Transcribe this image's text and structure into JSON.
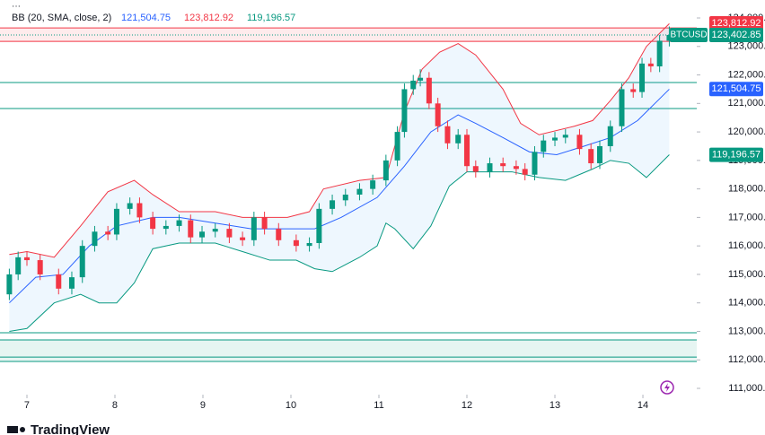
{
  "chart_data": {
    "type": "candlestick",
    "indicator": "BB (20, SMA, close, 2)",
    "symbol": "BTCUSD",
    "brand": "TradingView",
    "up_color": "#089981",
    "down_color": "#f23645",
    "xlim": [
      6.694,
      14.612
    ],
    "xticks": [
      7,
      8,
      9,
      10,
      11,
      12,
      13,
      14
    ],
    "ylim": [
      110780,
      124630
    ],
    "yticks": [
      {
        "value": 111000,
        "label": "111,000.00"
      },
      {
        "value": 112000,
        "label": "112,000.00"
      },
      {
        "value": 113000,
        "label": "113,000.00"
      },
      {
        "value": 114000,
        "label": "114,000.00"
      },
      {
        "value": 115000,
        "label": "115,000.00"
      },
      {
        "value": 116000,
        "label": "116,000.00"
      },
      {
        "value": 117000,
        "label": "117,000.00"
      },
      {
        "value": 118000,
        "label": "118,000.00"
      },
      {
        "value": 119000,
        "label": "119,000.00"
      },
      {
        "value": 120000,
        "label": "120,000.00"
      },
      {
        "value": 121000,
        "label": "121,000.00"
      },
      {
        "value": 122000,
        "label": "122,000.00"
      },
      {
        "value": 123000,
        "label": "123,000.00"
      },
      {
        "value": 124000,
        "label": "124,000.00"
      }
    ],
    "x": [
      6.8,
      6.9,
      7.0,
      7.15,
      7.36,
      7.51,
      7.63,
      7.77,
      7.92,
      8.02,
      8.17,
      8.28,
      8.43,
      8.58,
      8.73,
      8.86,
      8.99,
      9.14,
      9.3,
      9.45,
      9.58,
      9.7,
      9.86,
      10.06,
      10.21,
      10.32,
      10.47,
      10.62,
      10.78,
      10.93,
      11.08,
      11.21,
      11.29,
      11.39,
      11.47,
      11.57,
      11.67,
      11.78,
      11.9,
      12.0,
      12.1,
      12.26,
      12.41,
      12.56,
      12.66,
      12.77,
      12.87,
      13.0,
      13.12,
      13.28,
      13.41,
      13.51,
      13.63,
      13.76,
      13.89,
      13.99,
      14.09,
      14.19,
      14.3
    ],
    "open": [
      114300,
      115000,
      115600,
      115500,
      115000,
      114500,
      114900,
      116000,
      116500,
      116400,
      117300,
      117500,
      117000,
      116600,
      116700,
      116900,
      116300,
      116500,
      116600,
      116300,
      116200,
      117000,
      116600,
      116200,
      116000,
      116100,
      117300,
      117600,
      117800,
      118000,
      118300,
      119000,
      120000,
      121500,
      121800,
      121900,
      121000,
      120200,
      119600,
      119900,
      118800,
      118600,
      118900,
      118800,
      118700,
      118500,
      119300,
      119700,
      119800,
      119900,
      119400,
      118900,
      119500,
      120200,
      121500,
      121400,
      122400,
      122300,
      123200
    ],
    "high": [
      115200,
      115800,
      115800,
      115700,
      115200,
      115100,
      116200,
      116700,
      116700,
      117500,
      117700,
      117700,
      117200,
      116900,
      117100,
      117100,
      116700,
      116800,
      116800,
      116500,
      117200,
      117200,
      116800,
      116400,
      116300,
      117500,
      117800,
      118000,
      118200,
      118500,
      119200,
      120200,
      121700,
      122000,
      122200,
      122100,
      121200,
      120400,
      120100,
      120100,
      119000,
      119100,
      119100,
      119000,
      118900,
      119500,
      119900,
      120000,
      120100,
      120100,
      119600,
      119700,
      120400,
      121700,
      121700,
      122600,
      122600,
      123400,
      123700
    ],
    "low": [
      114100,
      114800,
      115300,
      114800,
      114300,
      114300,
      114700,
      115800,
      116200,
      116200,
      117100,
      116800,
      116400,
      116400,
      116500,
      116100,
      116100,
      116300,
      116100,
      116000,
      116000,
      116400,
      116000,
      115800,
      115800,
      115900,
      117100,
      117400,
      117600,
      117800,
      118100,
      118800,
      119800,
      121300,
      121600,
      120800,
      120000,
      119400,
      119400,
      118600,
      118400,
      118400,
      118600,
      118500,
      118300,
      118300,
      119100,
      119500,
      119600,
      119200,
      118700,
      118700,
      119300,
      120000,
      121200,
      121200,
      122100,
      122100,
      123000
    ],
    "close": [
      115000,
      115600,
      115500,
      115000,
      114500,
      114900,
      116000,
      116500,
      116400,
      117300,
      117500,
      117000,
      116600,
      116700,
      116900,
      116300,
      116500,
      116600,
      116300,
      116200,
      117000,
      116600,
      116200,
      116000,
      116100,
      117300,
      117600,
      117800,
      118000,
      118300,
      119000,
      120000,
      121500,
      121800,
      121900,
      121000,
      120200,
      119600,
      119900,
      118800,
      118600,
      118900,
      118800,
      118700,
      118500,
      119300,
      119700,
      119800,
      119900,
      119400,
      118900,
      119500,
      120200,
      121500,
      121400,
      122400,
      122300,
      123200,
      123403
    ],
    "bands": [
      {
        "color": "#f23645",
        "x": [
          6.8,
          7.0,
          7.31,
          7.61,
          7.92,
          8.22,
          8.43,
          8.73,
          9.14,
          9.45,
          9.65,
          9.96,
          10.21,
          10.37,
          10.78,
          11.08,
          11.29,
          11.49,
          11.69,
          11.9,
          12.1,
          12.41,
          12.61,
          12.82,
          13.22,
          13.43,
          13.63,
          13.84,
          14.04,
          14.3
        ],
        "values": [
          115700,
          115800,
          115600,
          116700,
          117900,
          118300,
          117800,
          117200,
          117200,
          117000,
          117000,
          117000,
          117200,
          118000,
          118300,
          118400,
          120700,
          122200,
          122800,
          123100,
          122700,
          121500,
          120300,
          119900,
          120200,
          120400,
          121100,
          121900,
          123000,
          123800
        ]
      },
      {
        "color": "#2962ff",
        "x": [
          6.8,
          7.1,
          7.41,
          7.71,
          8.02,
          8.43,
          8.73,
          9.14,
          9.55,
          9.96,
          10.27,
          10.57,
          10.98,
          11.29,
          11.59,
          11.9,
          12.1,
          12.41,
          12.71,
          13.02,
          13.33,
          13.63,
          13.94,
          14.3
        ],
        "values": [
          114000,
          114900,
          115000,
          116000,
          116700,
          117000,
          117000,
          116800,
          116600,
          116600,
          116600,
          117000,
          117700,
          118800,
          120000,
          120600,
          120300,
          119800,
          119300,
          119200,
          119500,
          119800,
          120400,
          121500
        ]
      },
      {
        "color": "#089981",
        "x": [
          6.8,
          7.0,
          7.31,
          7.61,
          7.82,
          8.02,
          8.22,
          8.43,
          8.73,
          9.14,
          9.45,
          9.76,
          10.06,
          10.27,
          10.47,
          10.78,
          10.98,
          11.08,
          11.18,
          11.39,
          11.59,
          11.8,
          12.0,
          12.2,
          12.51,
          12.82,
          13.12,
          13.43,
          13.63,
          13.84,
          14.04,
          14.3
        ],
        "values": [
          113000,
          113100,
          114000,
          114300,
          114000,
          114000,
          114700,
          115900,
          116100,
          116100,
          115800,
          115500,
          115500,
          115200,
          115100,
          115600,
          116000,
          116800,
          116600,
          115900,
          116700,
          118100,
          118600,
          118600,
          118600,
          118400,
          118300,
          118700,
          119000,
          118900,
          118400,
          119200
        ]
      }
    ],
    "zones": [
      {
        "from": 123180,
        "to": 123650,
        "color": "#f23645"
      },
      {
        "from": 111944,
        "to": 112700,
        "color": "#089981"
      }
    ],
    "levels": [
      {
        "value": 121734,
        "color": "#089981"
      },
      {
        "value": 120821,
        "color": "#089981"
      },
      {
        "value": 112951,
        "color": "#089981"
      },
      {
        "value": 112100,
        "color": "#089981"
      }
    ],
    "price_tags": [
      {
        "value": 123812.92,
        "label": "123,812.92",
        "color": "#f23645"
      },
      {
        "value": 123402.85,
        "label": "123,402.85",
        "color": "#089981"
      },
      {
        "value": 121504.75,
        "label": "121,504.75",
        "color": "#2962ff"
      },
      {
        "value": 119196.57,
        "label": "119,196.57",
        "color": "#089981"
      }
    ]
  }
}
